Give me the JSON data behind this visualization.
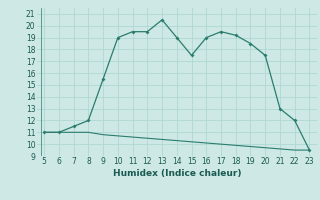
{
  "xlabel": "Humidex (Indice chaleur)",
  "line1_x": [
    5,
    6,
    7,
    8,
    9,
    10,
    11,
    12,
    13,
    14,
    15,
    16,
    17,
    18,
    19,
    20,
    21,
    22,
    23
  ],
  "line1_y": [
    11,
    11,
    11.5,
    12,
    15.5,
    19,
    19.5,
    19.5,
    20.5,
    19,
    17.5,
    19,
    19.5,
    19.2,
    18.5,
    17.5,
    13,
    12,
    9.5
  ],
  "line2_x": [
    5,
    6,
    7,
    8,
    9,
    10,
    11,
    12,
    13,
    14,
    15,
    16,
    17,
    18,
    19,
    20,
    21,
    22,
    23
  ],
  "line2_y": [
    11,
    11,
    11,
    11,
    10.8,
    10.7,
    10.6,
    10.5,
    10.4,
    10.3,
    10.2,
    10.1,
    10.0,
    9.9,
    9.8,
    9.7,
    9.6,
    9.5,
    9.5
  ],
  "line_color": "#2a7d6e",
  "bg_color": "#cde8e5",
  "grid_color": "#b0d8d4",
  "ylim": [
    9,
    21.5
  ],
  "xlim": [
    4.5,
    23.5
  ],
  "yticks": [
    9,
    10,
    11,
    12,
    13,
    14,
    15,
    16,
    17,
    18,
    19,
    20,
    21
  ],
  "xticks": [
    5,
    6,
    7,
    8,
    9,
    10,
    11,
    12,
    13,
    14,
    15,
    16,
    17,
    18,
    19,
    20,
    21,
    22,
    23
  ],
  "tick_fontsize": 5.5,
  "xlabel_fontsize": 6.5
}
